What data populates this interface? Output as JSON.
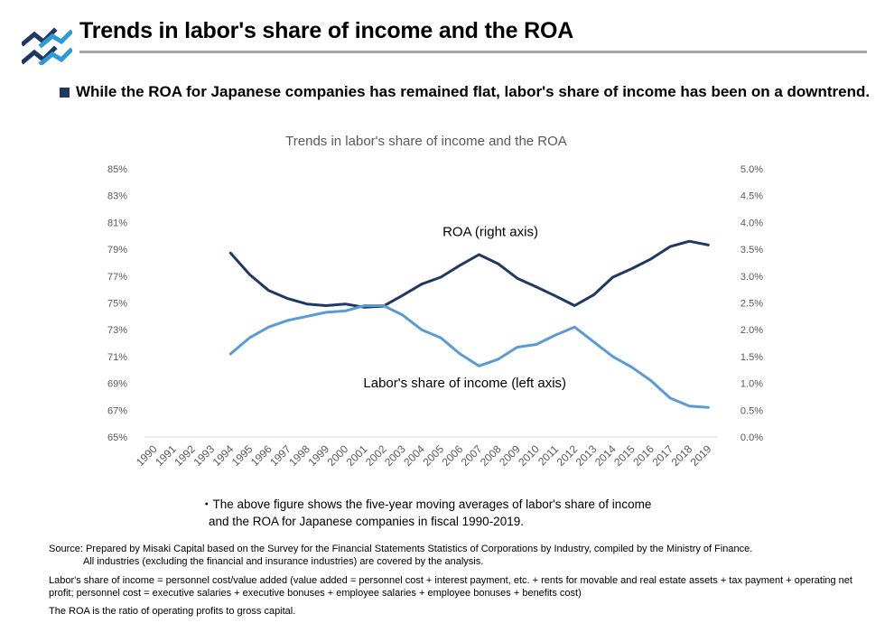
{
  "header": {
    "title": "Trends in labor's share of income and the ROA",
    "logo_icon": "double-chevron-logo",
    "rule_color": "#a6a6a6"
  },
  "headline": {
    "text": "While the ROA for Japanese companies has remained flat, labor's share of income has been on a downtrend.",
    "bullet_color": "#1f3864"
  },
  "chart_data": {
    "type": "line",
    "title": "Trends in labor's share of income and the ROA",
    "categories": [
      "1990",
      "1991",
      "1992",
      "1993",
      "1994",
      "1995",
      "1996",
      "1997",
      "1998",
      "1999",
      "2000",
      "2001",
      "2002",
      "2003",
      "2004",
      "2005",
      "2006",
      "2007",
      "2008",
      "2009",
      "2010",
      "2011",
      "2012",
      "2013",
      "2014",
      "2015",
      "2016",
      "2017",
      "2018",
      "2019"
    ],
    "y_left": {
      "ylim": [
        65,
        85
      ],
      "ticks": [
        65,
        67,
        69,
        71,
        73,
        75,
        77,
        79,
        81,
        83,
        85
      ],
      "tick_labels": [
        "65%",
        "67%",
        "69%",
        "71%",
        "73%",
        "75%",
        "77%",
        "79%",
        "81%",
        "83%",
        "85%"
      ]
    },
    "y_right": {
      "ylim": [
        0.0,
        5.0
      ],
      "ticks": [
        0.0,
        0.5,
        1.0,
        1.5,
        2.0,
        2.5,
        3.0,
        3.5,
        4.0,
        4.5,
        5.0
      ],
      "tick_labels": [
        "0.0%",
        "0.5%",
        "1.0%",
        "1.5%",
        "2.0%",
        "2.5%",
        "3.0%",
        "3.5%",
        "4.0%",
        "4.5%",
        "5.0%"
      ]
    },
    "grid": false,
    "series": [
      {
        "name": "ROA (right axis)",
        "axis": "right",
        "color": "#1f3864",
        "values": [
          null,
          null,
          null,
          null,
          3.43,
          3.03,
          2.73,
          2.58,
          2.48,
          2.45,
          2.48,
          2.42,
          2.44,
          2.64,
          2.85,
          2.98,
          3.2,
          3.4,
          3.23,
          2.96,
          2.8,
          2.63,
          2.45,
          2.65,
          2.98,
          3.14,
          3.32,
          3.55,
          3.65,
          3.58
        ]
      },
      {
        "name": "Labor's share of income (left axis)",
        "axis": "left",
        "color": "#5b9bd5",
        "values": [
          null,
          null,
          null,
          null,
          71.2,
          72.4,
          73.2,
          73.7,
          74.0,
          74.3,
          74.4,
          74.8,
          74.8,
          74.1,
          73.0,
          72.4,
          71.2,
          70.3,
          70.8,
          71.7,
          71.9,
          72.6,
          73.2,
          72.1,
          71.0,
          70.2,
          69.2,
          67.9,
          67.3,
          67.2
        ]
      }
    ]
  },
  "note": {
    "line1": "・The above figure shows the five-year moving averages of labor's share of income",
    "line2": "and the ROA for Japanese companies in fiscal 1990-2019."
  },
  "source": {
    "line1": "Source: Prepared by Misaki Capital based on the Survey for the Financial Statements Statistics of Corporations by Industry, compiled by the Ministry of Finance.",
    "line2": "All industries (excluding the financial and insurance industries) are covered by the analysis."
  },
  "formula": {
    "text": "Labor's share of income = personnel cost/value added (value added = personnel cost + interest payment, etc. + rents for movable and real estate assets + tax payment + operating net profit; personnel cost = executive salaries + executive bonuses + employee salaries + employee bonuses + benefits cost)"
  },
  "roa_definition": {
    "text": "The ROA is the ratio of operating profits to gross capital."
  }
}
